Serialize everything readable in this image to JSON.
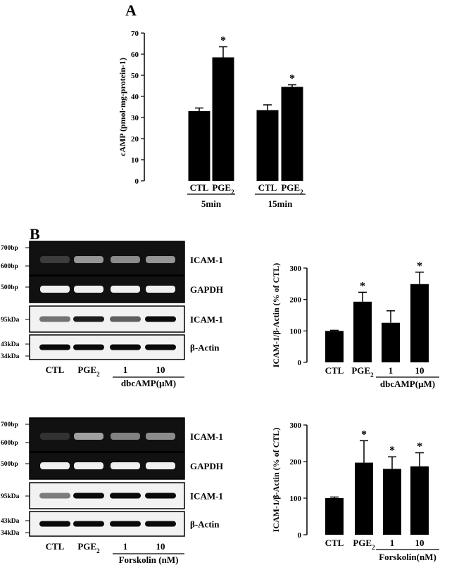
{
  "panel_a_letter": "A",
  "panel_b_letter": "B",
  "chart_data": [
    {
      "type": "bar",
      "id": "A",
      "ylabel": "cAMP (pmol·mg-protein-1)",
      "ylim": [
        0,
        70
      ],
      "yticks": [
        "0",
        "10",
        "20",
        "30",
        "40",
        "50",
        "60",
        "70"
      ],
      "categories": [
        "CTL",
        "PGE2",
        "CTL",
        "PGE2"
      ],
      "groups": [
        "5min",
        "15min"
      ],
      "values": [
        33,
        58.5,
        33.5,
        44.5
      ],
      "errors": [
        1.5,
        5,
        2.5,
        1
      ],
      "significance": [
        "",
        "*",
        "",
        "*"
      ],
      "grid": false,
      "legend": "none"
    },
    {
      "type": "bar",
      "id": "B1",
      "ylabel": "ICAM-1/β-Actin (% of CTL)",
      "ylim": [
        0,
        300
      ],
      "yticks": [
        "0",
        "100",
        "200",
        "300"
      ],
      "categories": [
        "CTL",
        "PGE2",
        "1",
        "10"
      ],
      "group_label": "dbcAMP(μM)",
      "values": [
        100,
        193,
        126,
        249
      ],
      "errors": [
        2,
        30,
        38,
        38
      ],
      "significance": [
        "",
        "*",
        "",
        "*"
      ],
      "grid": false,
      "legend": "none"
    },
    {
      "type": "bar",
      "id": "B2",
      "ylabel": "ICAM-1/β-Actin (% of CTL)",
      "ylim": [
        0,
        300
      ],
      "yticks": [
        "0",
        "100",
        "200",
        "300"
      ],
      "categories": [
        "CTL",
        "PGE2",
        "1",
        "10"
      ],
      "group_label": "Forskolin(nM)",
      "values": [
        100,
        197,
        180,
        187
      ],
      "errors": [
        3,
        60,
        33,
        37
      ],
      "significance": [
        "",
        "*",
        "*",
        "*"
      ],
      "grid": false,
      "legend": "none"
    }
  ],
  "blots": [
    {
      "marker_labels": [
        "700bp",
        "600bp",
        "500bp",
        "95kDa",
        "43kDa",
        "34kDa"
      ],
      "row_labels": [
        "ICAM-1",
        "GAPDH",
        "ICAM-1",
        "β-Actin"
      ],
      "lane_labels": [
        "CTL",
        "PGE2",
        "1",
        "10"
      ],
      "group_label": "dbcAMP(μM)",
      "band_intensity": [
        [
          0.1,
          0.55,
          0.5,
          0.55
        ],
        [
          1,
          1,
          1,
          1
        ],
        [
          0.45,
          0.9,
          0.55,
          1
        ],
        [
          1,
          1,
          1,
          1
        ]
      ]
    },
    {
      "marker_labels": [
        "700bp",
        "600bp",
        "500bp",
        "95kDa",
        "43kDa",
        "34kDa"
      ],
      "row_labels": [
        "ICAM-1",
        "GAPDH",
        "ICAM-1",
        "β-Actin"
      ],
      "lane_labels": [
        "CTL",
        "PGE2",
        "1",
        "10"
      ],
      "group_label": "Forskolin (nM)",
      "band_intensity": [
        [
          0.05,
          0.6,
          0.45,
          0.5
        ],
        [
          1,
          1,
          1,
          1
        ],
        [
          0.4,
          1,
          1,
          1
        ],
        [
          1,
          1,
          1,
          1
        ]
      ]
    }
  ]
}
